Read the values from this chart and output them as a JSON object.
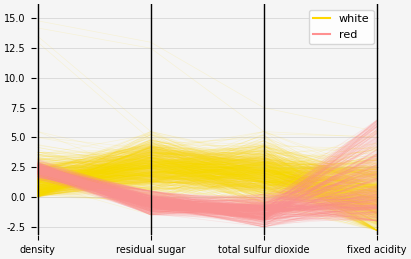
{
  "columns": [
    "density",
    "residual sugar",
    "total sulfur dioxide",
    "fixed acidity"
  ],
  "white_color": "#FFD700",
  "red_color": "#FF9090",
  "white_alpha": 0.12,
  "red_alpha": 0.18,
  "white_label": "white",
  "red_label": "red",
  "ylim": [
    -3.2,
    16.2
  ],
  "yticks": [
    -2.5,
    0.0,
    2.5,
    5.0,
    7.5,
    10.0,
    12.5,
    15.0
  ],
  "figsize": [
    4.11,
    2.59
  ],
  "dpi": 100,
  "bg_color": "#f5f5f5",
  "legend_fontsize": 8,
  "tick_fontsize": 7,
  "n_white": 800,
  "n_red": 400,
  "random_seed": 17
}
